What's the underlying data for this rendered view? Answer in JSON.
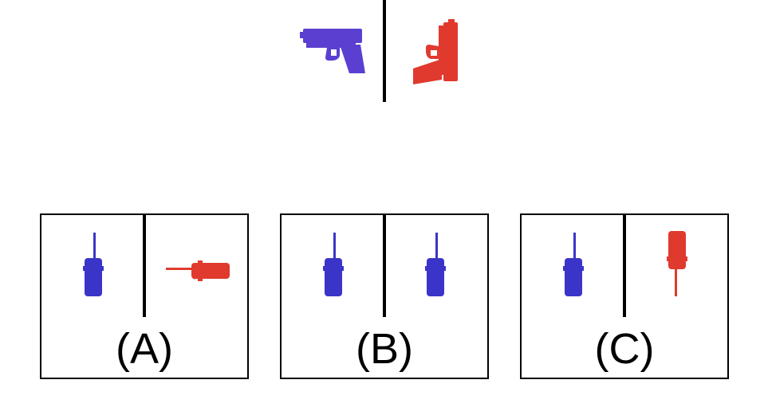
{
  "colors": {
    "blue": "#3a35c8",
    "red": "#e03a2e",
    "line": "#000000"
  },
  "prompt": {
    "left_icon": "pistol-icon",
    "left_color": "blue",
    "left_orientation": "upright",
    "right_icon": "pistol-icon",
    "right_color": "red",
    "right_orientation": "rotated-90"
  },
  "options": [
    {
      "label": "(A)",
      "left_icon": "walkie-talkie-icon",
      "left_color": "blue",
      "left_orientation": "upright",
      "right_icon": "walkie-talkie-icon",
      "right_color": "red",
      "right_orientation": "rotated-90"
    },
    {
      "label": "(B)",
      "left_icon": "walkie-talkie-icon",
      "left_color": "blue",
      "left_orientation": "upright",
      "right_icon": "walkie-talkie-icon",
      "right_color": "blue",
      "right_orientation": "upright"
    },
    {
      "label": "(C)",
      "left_icon": "walkie-talkie-icon",
      "left_color": "blue",
      "left_orientation": "upright",
      "right_icon": "walkie-talkie-icon",
      "right_color": "red",
      "right_orientation": "rotated-180"
    }
  ]
}
